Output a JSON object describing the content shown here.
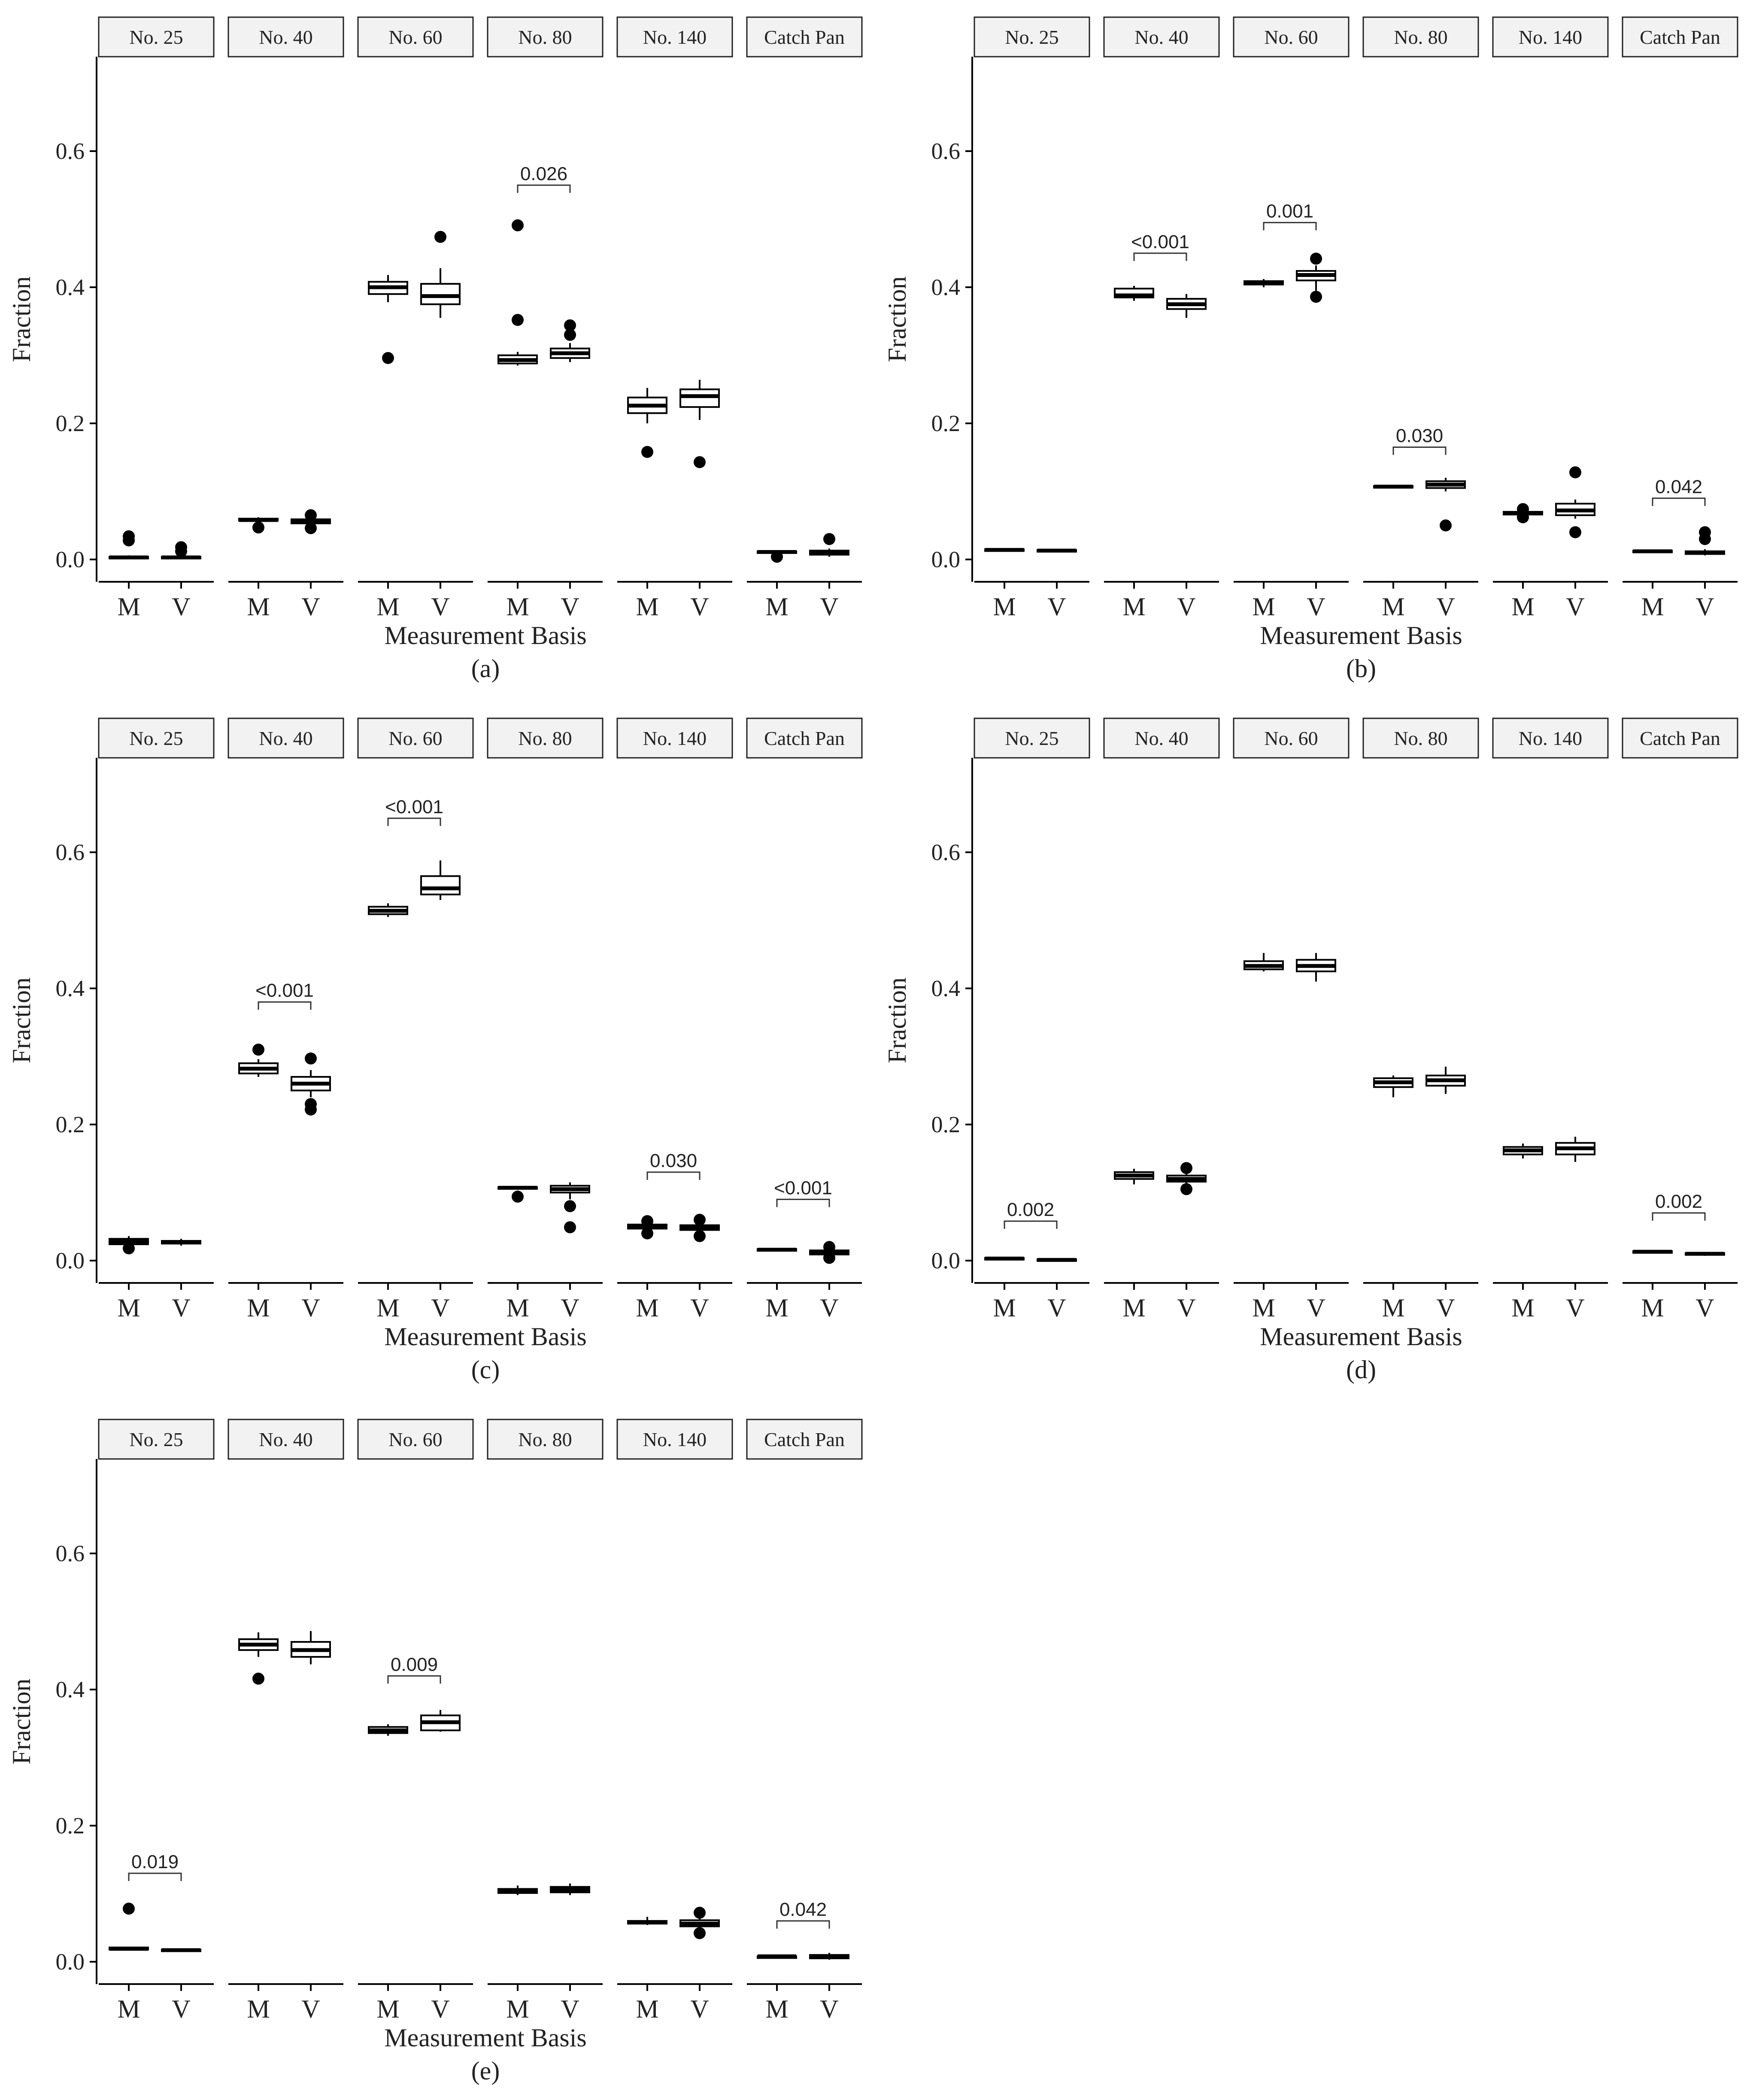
{
  "chart_data": {
    "type": "boxplot",
    "facet_labels": [
      "No. 25",
      "No. 40",
      "No. 60",
      "No. 80",
      "No. 140",
      "Catch Pan"
    ],
    "categories": [
      "M",
      "V"
    ],
    "xlabel": "Measurement Basis",
    "ylabel": "Fraction",
    "ylim": [
      -0.03,
      0.75
    ],
    "yticks": [
      0.0,
      0.2,
      0.4,
      0.6
    ],
    "ytick_labels": [
      "0.0",
      "0.2",
      "0.4",
      "0.6"
    ],
    "panels": [
      {
        "caption": "(a)",
        "facets": [
          {
            "label": "No. 25",
            "M": {
              "min": 0.001,
              "q1": 0.002,
              "med": 0.003,
              "q3": 0.004,
              "max": 0.006,
              "outliers": [
                0.028,
                0.034
              ]
            },
            "V": {
              "min": 0.001,
              "q1": 0.002,
              "med": 0.003,
              "q3": 0.004,
              "max": 0.006,
              "outliers": [
                0.012,
                0.018
              ]
            },
            "annotation": null
          },
          {
            "label": "No. 40",
            "M": {
              "min": 0.055,
              "q1": 0.057,
              "med": 0.058,
              "q3": 0.06,
              "max": 0.062,
              "outliers": [
                0.047
              ]
            },
            "V": {
              "min": 0.05,
              "q1": 0.053,
              "med": 0.056,
              "q3": 0.059,
              "max": 0.063,
              "outliers": [
                0.046,
                0.065
              ]
            },
            "annotation": null
          },
          {
            "label": "No. 60",
            "M": {
              "min": 0.378,
              "q1": 0.39,
              "med": 0.4,
              "q3": 0.408,
              "max": 0.418,
              "outliers": [
                0.296
              ]
            },
            "V": {
              "min": 0.355,
              "q1": 0.375,
              "med": 0.387,
              "q3": 0.405,
              "max": 0.428,
              "outliers": [
                0.474
              ]
            },
            "annotation": null
          },
          {
            "label": "No. 80",
            "M": {
              "min": 0.285,
              "q1": 0.288,
              "med": 0.293,
              "q3": 0.3,
              "max": 0.305,
              "outliers": [
                0.352,
                0.491
              ]
            },
            "V": {
              "min": 0.29,
              "q1": 0.296,
              "med": 0.303,
              "q3": 0.31,
              "max": 0.318,
              "outliers": [
                0.33,
                0.344
              ]
            },
            "annotation": {
              "text": "0.026",
              "y": 0.55
            }
          },
          {
            "label": "No. 140",
            "M": {
              "min": 0.2,
              "q1": 0.215,
              "med": 0.226,
              "q3": 0.238,
              "max": 0.252,
              "outliers": [
                0.158
              ]
            },
            "V": {
              "min": 0.205,
              "q1": 0.224,
              "med": 0.24,
              "q3": 0.25,
              "max": 0.264,
              "outliers": [
                0.143
              ]
            },
            "annotation": null
          },
          {
            "label": "Catch Pan",
            "M": {
              "min": 0.008,
              "q1": 0.01,
              "med": 0.011,
              "q3": 0.012,
              "max": 0.013,
              "outliers": [
                0.004
              ]
            },
            "V": {
              "min": 0.004,
              "q1": 0.007,
              "med": 0.01,
              "q3": 0.013,
              "max": 0.016,
              "outliers": [
                0.03
              ]
            },
            "annotation": null
          }
        ]
      },
      {
        "caption": "(b)",
        "facets": [
          {
            "label": "No. 25",
            "M": {
              "min": 0.012,
              "q1": 0.013,
              "med": 0.014,
              "q3": 0.015,
              "max": 0.016,
              "outliers": []
            },
            "V": {
              "min": 0.011,
              "q1": 0.012,
              "med": 0.013,
              "q3": 0.014,
              "max": 0.015,
              "outliers": []
            },
            "annotation": null
          },
          {
            "label": "No. 40",
            "M": {
              "min": 0.38,
              "q1": 0.385,
              "med": 0.388,
              "q3": 0.398,
              "max": 0.402,
              "outliers": []
            },
            "V": {
              "min": 0.355,
              "q1": 0.368,
              "med": 0.375,
              "q3": 0.383,
              "max": 0.39,
              "outliers": []
            },
            "annotation": {
              "text": "<0.001",
              "y": 0.45
            }
          },
          {
            "label": "No. 60",
            "M": {
              "min": 0.4,
              "q1": 0.404,
              "med": 0.406,
              "q3": 0.409,
              "max": 0.412,
              "outliers": []
            },
            "V": {
              "min": 0.395,
              "q1": 0.41,
              "med": 0.418,
              "q3": 0.424,
              "max": 0.432,
              "outliers": [
                0.386,
                0.442
              ]
            },
            "annotation": {
              "text": "0.001",
              "y": 0.495
            }
          },
          {
            "label": "No. 80",
            "M": {
              "min": 0.105,
              "q1": 0.106,
              "med": 0.107,
              "q3": 0.108,
              "max": 0.109,
              "outliers": []
            },
            "V": {
              "min": 0.1,
              "q1": 0.105,
              "med": 0.11,
              "q3": 0.115,
              "max": 0.12,
              "outliers": [
                0.05
              ]
            },
            "annotation": {
              "text": "0.030",
              "y": 0.165
            }
          },
          {
            "label": "No. 140",
            "M": {
              "min": 0.064,
              "q1": 0.066,
              "med": 0.068,
              "q3": 0.07,
              "max": 0.072,
              "outliers": [
                0.062,
                0.074
              ]
            },
            "V": {
              "min": 0.06,
              "q1": 0.065,
              "med": 0.072,
              "q3": 0.082,
              "max": 0.088,
              "outliers": [
                0.04,
                0.128
              ]
            },
            "annotation": null
          },
          {
            "label": "Catch Pan",
            "M": {
              "min": 0.011,
              "q1": 0.012,
              "med": 0.012,
              "q3": 0.013,
              "max": 0.013,
              "outliers": []
            },
            "V": {
              "min": 0.006,
              "q1": 0.008,
              "med": 0.01,
              "q3": 0.012,
              "max": 0.015,
              "outliers": [
                0.03,
                0.04
              ]
            },
            "annotation": {
              "text": "0.042",
              "y": 0.09
            }
          }
        ]
      },
      {
        "caption": "(c)",
        "facets": [
          {
            "label": "No. 25",
            "M": {
              "min": 0.02,
              "q1": 0.024,
              "med": 0.028,
              "q3": 0.032,
              "max": 0.036,
              "outliers": [
                0.018
              ]
            },
            "V": {
              "min": 0.022,
              "q1": 0.025,
              "med": 0.027,
              "q3": 0.029,
              "max": 0.032,
              "outliers": []
            },
            "annotation": null
          },
          {
            "label": "No. 40",
            "M": {
              "min": 0.27,
              "q1": 0.275,
              "med": 0.282,
              "q3": 0.29,
              "max": 0.296,
              "outliers": [
                0.31
              ]
            },
            "V": {
              "min": 0.24,
              "q1": 0.25,
              "med": 0.26,
              "q3": 0.27,
              "max": 0.28,
              "outliers": [
                0.222,
                0.23,
                0.297
              ]
            },
            "annotation": {
              "text": "<0.001",
              "y": 0.38
            }
          },
          {
            "label": "No. 60",
            "M": {
              "min": 0.505,
              "q1": 0.509,
              "med": 0.514,
              "q3": 0.52,
              "max": 0.525,
              "outliers": []
            },
            "V": {
              "min": 0.53,
              "q1": 0.538,
              "med": 0.547,
              "q3": 0.565,
              "max": 0.588,
              "outliers": []
            },
            "annotation": {
              "text": "<0.001",
              "y": 0.65
            }
          },
          {
            "label": "No. 80",
            "M": {
              "min": 0.104,
              "q1": 0.106,
              "med": 0.107,
              "q3": 0.108,
              "max": 0.109,
              "outliers": [
                0.094
              ]
            },
            "V": {
              "min": 0.09,
              "q1": 0.1,
              "med": 0.105,
              "q3": 0.11,
              "max": 0.115,
              "outliers": [
                0.08,
                0.049
              ]
            },
            "annotation": null
          },
          {
            "label": "No. 140",
            "M": {
              "min": 0.044,
              "q1": 0.047,
              "med": 0.05,
              "q3": 0.053,
              "max": 0.056,
              "outliers": [
                0.04,
                0.058
              ]
            },
            "V": {
              "min": 0.042,
              "q1": 0.045,
              "med": 0.048,
              "q3": 0.052,
              "max": 0.056,
              "outliers": [
                0.036,
                0.06
              ]
            },
            "annotation": {
              "text": "0.030",
              "y": 0.13
            }
          },
          {
            "label": "Catch Pan",
            "M": {
              "min": 0.015,
              "q1": 0.016,
              "med": 0.016,
              "q3": 0.017,
              "max": 0.018,
              "outliers": []
            },
            "V": {
              "min": 0.006,
              "q1": 0.009,
              "med": 0.012,
              "q3": 0.015,
              "max": 0.018,
              "outliers": [
                0.004,
                0.02
              ]
            },
            "annotation": {
              "text": "<0.001",
              "y": 0.09
            }
          }
        ]
      },
      {
        "caption": "(d)",
        "facets": [
          {
            "label": "No. 25",
            "M": {
              "min": 0.002,
              "q1": 0.003,
              "med": 0.003,
              "q3": 0.004,
              "max": 0.004,
              "outliers": []
            },
            "V": {
              "min": 0.0,
              "q1": 0.001,
              "med": 0.001,
              "q3": 0.002,
              "max": 0.002,
              "outliers": []
            },
            "annotation": {
              "text": "0.002",
              "y": 0.058
            }
          },
          {
            "label": "No. 40",
            "M": {
              "min": 0.112,
              "q1": 0.12,
              "med": 0.125,
              "q3": 0.13,
              "max": 0.135,
              "outliers": []
            },
            "V": {
              "min": 0.112,
              "q1": 0.116,
              "med": 0.12,
              "q3": 0.125,
              "max": 0.128,
              "outliers": [
                0.105,
                0.136
              ]
            },
            "annotation": null
          },
          {
            "label": "No. 60",
            "M": {
              "min": 0.425,
              "q1": 0.428,
              "med": 0.433,
              "q3": 0.44,
              "max": 0.452,
              "outliers": []
            },
            "V": {
              "min": 0.41,
              "q1": 0.425,
              "med": 0.433,
              "q3": 0.442,
              "max": 0.452,
              "outliers": []
            },
            "annotation": null
          },
          {
            "label": "No. 80",
            "M": {
              "min": 0.24,
              "q1": 0.255,
              "med": 0.262,
              "q3": 0.268,
              "max": 0.272,
              "outliers": []
            },
            "V": {
              "min": 0.245,
              "q1": 0.257,
              "med": 0.265,
              "q3": 0.272,
              "max": 0.285,
              "outliers": []
            },
            "annotation": null
          },
          {
            "label": "No. 140",
            "M": {
              "min": 0.15,
              "q1": 0.156,
              "med": 0.162,
              "q3": 0.167,
              "max": 0.172,
              "outliers": []
            },
            "V": {
              "min": 0.145,
              "q1": 0.156,
              "med": 0.165,
              "q3": 0.173,
              "max": 0.182,
              "outliers": []
            },
            "annotation": null
          },
          {
            "label": "Catch Pan",
            "M": {
              "min": 0.011,
              "q1": 0.012,
              "med": 0.013,
              "q3": 0.014,
              "max": 0.014,
              "outliers": []
            },
            "V": {
              "min": 0.007,
              "q1": 0.009,
              "med": 0.01,
              "q3": 0.011,
              "max": 0.012,
              "outliers": []
            },
            "annotation": {
              "text": "0.002",
              "y": 0.07
            }
          }
        ]
      },
      {
        "caption": "(e)",
        "facets": [
          {
            "label": "No. 25",
            "M": {
              "min": 0.017,
              "q1": 0.018,
              "med": 0.019,
              "q3": 0.021,
              "max": 0.022,
              "outliers": [
                0.078
              ]
            },
            "V": {
              "min": 0.015,
              "q1": 0.016,
              "med": 0.017,
              "q3": 0.018,
              "max": 0.019,
              "outliers": []
            },
            "annotation": {
              "text": "0.019",
              "y": 0.13
            }
          },
          {
            "label": "No. 40",
            "M": {
              "min": 0.448,
              "q1": 0.458,
              "med": 0.466,
              "q3": 0.474,
              "max": 0.484,
              "outliers": [
                0.416
              ]
            },
            "V": {
              "min": 0.437,
              "q1": 0.448,
              "med": 0.458,
              "q3": 0.47,
              "max": 0.486,
              "outliers": []
            },
            "annotation": null
          },
          {
            "label": "No. 60",
            "M": {
              "min": 0.332,
              "q1": 0.336,
              "med": 0.34,
              "q3": 0.345,
              "max": 0.349,
              "outliers": []
            },
            "V": {
              "min": 0.338,
              "q1": 0.34,
              "med": 0.352,
              "q3": 0.362,
              "max": 0.37,
              "outliers": []
            },
            "annotation": {
              "text": "0.009",
              "y": 0.42
            }
          },
          {
            "label": "No. 80",
            "M": {
              "min": 0.098,
              "q1": 0.101,
              "med": 0.104,
              "q3": 0.107,
              "max": 0.112,
              "outliers": []
            },
            "V": {
              "min": 0.098,
              "q1": 0.102,
              "med": 0.106,
              "q3": 0.11,
              "max": 0.115,
              "outliers": []
            },
            "annotation": null
          },
          {
            "label": "No. 140",
            "M": {
              "min": 0.054,
              "q1": 0.056,
              "med": 0.058,
              "q3": 0.06,
              "max": 0.066,
              "outliers": []
            },
            "V": {
              "min": 0.048,
              "q1": 0.052,
              "med": 0.056,
              "q3": 0.061,
              "max": 0.065,
              "outliers": [
                0.042,
                0.072
              ]
            },
            "annotation": null
          },
          {
            "label": "Catch Pan",
            "M": {
              "min": 0.006,
              "q1": 0.007,
              "med": 0.008,
              "q3": 0.008,
              "max": 0.009,
              "outliers": []
            },
            "V": {
              "min": 0.003,
              "q1": 0.005,
              "med": 0.007,
              "q3": 0.01,
              "max": 0.013,
              "outliers": []
            },
            "annotation": {
              "text": "0.042",
              "y": 0.06
            }
          }
        ]
      }
    ]
  }
}
